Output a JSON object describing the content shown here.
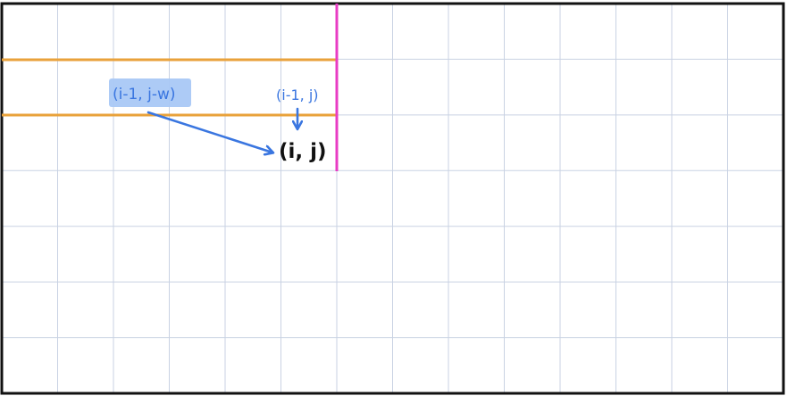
{
  "diagram": {
    "grid": {
      "columns": 14,
      "rows": 7,
      "line_color": "#c9d2e3",
      "border_color": "#111111"
    },
    "highlight_rows": {
      "color": "#e9a23b"
    },
    "divider": {
      "color": "#e83cc4"
    },
    "labels": {
      "previous_row_offset": "(i-1, j-w)",
      "previous_row_same": "(i-1, j)",
      "current_cell": "(i, j)"
    },
    "colors": {
      "note_blue": "#3a76e0",
      "label_highlight": "#a9c8f5",
      "ink_black": "#111111"
    }
  }
}
